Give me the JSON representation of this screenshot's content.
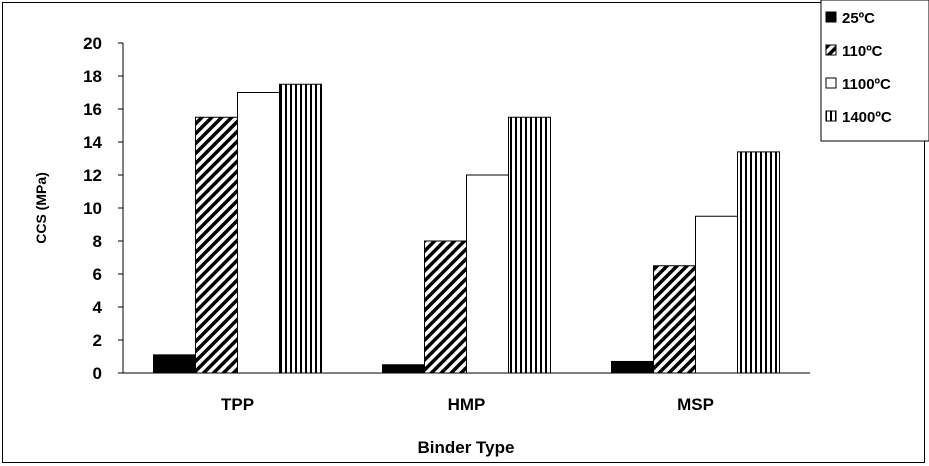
{
  "chart_data": {
    "type": "bar",
    "title": "",
    "xlabel": "Binder Type",
    "ylabel": "CCS (MPa)",
    "categories": [
      "TPP",
      "HMP",
      "MSP"
    ],
    "ylim": [
      0,
      20
    ],
    "yticks": [
      0,
      2,
      4,
      6,
      8,
      10,
      12,
      14,
      16,
      18,
      20
    ],
    "grid": false,
    "legend": "top-right",
    "series": [
      {
        "name": "25ºC",
        "values": [
          1.1,
          0.5,
          0.7
        ],
        "pattern": "solid",
        "color": "#000000"
      },
      {
        "name": "110ºC",
        "values": [
          15.5,
          8.0,
          6.5
        ],
        "pattern": "diagonal-hatch",
        "color": "#000000"
      },
      {
        "name": "1100ºC",
        "values": [
          17.0,
          12.0,
          9.5
        ],
        "pattern": "white",
        "color": "#ffffff"
      },
      {
        "name": "1400ºC",
        "values": [
          17.5,
          15.5,
          13.4
        ],
        "pattern": "vertical-lines",
        "color": "#000000"
      }
    ]
  }
}
